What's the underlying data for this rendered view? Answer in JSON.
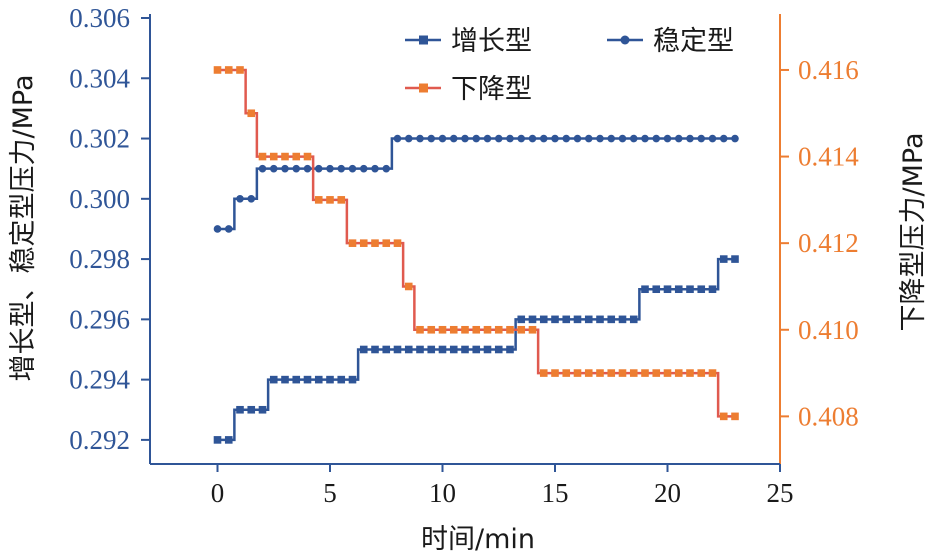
{
  "chart_data": {
    "type": "line",
    "xlabel": "时间/min",
    "ylabel_left": "增长型、稳定型压力/MPa",
    "ylabel_right": "下降型压力/MPa",
    "xlim": [
      -3,
      25
    ],
    "xticks": [
      0,
      5,
      10,
      15,
      20,
      25
    ],
    "ylim_left": [
      0.2912,
      0.306
    ],
    "yticks_left": [
      "0.292",
      "0.294",
      "0.296",
      "0.298",
      "0.300",
      "0.302",
      "0.304",
      "0.306"
    ],
    "ylim_right": [
      0.4069,
      0.4172
    ],
    "yticks_right": [
      "0.408",
      "0.410",
      "0.412",
      "0.414",
      "0.416"
    ],
    "legend": "top",
    "grid": false,
    "series": [
      {
        "name": "增长型",
        "axis": "left",
        "color": "#2f5597",
        "marker": "square",
        "x": [
          0,
          0.5,
          1,
          1.5,
          2,
          2.5,
          3,
          3.5,
          4,
          4.5,
          5,
          5.5,
          6,
          6.5,
          7,
          7.5,
          8,
          8.5,
          9,
          9.5,
          10,
          10.5,
          11,
          11.5,
          12,
          12.5,
          13,
          13.5,
          14,
          14.5,
          15,
          15.5,
          16,
          16.5,
          17,
          17.5,
          18,
          18.5,
          19,
          19.5,
          20,
          20.5,
          21,
          21.5,
          22,
          22.5,
          23
        ],
        "y": [
          0.292,
          0.292,
          0.293,
          0.293,
          0.293,
          0.294,
          0.294,
          0.294,
          0.294,
          0.294,
          0.294,
          0.294,
          0.294,
          0.295,
          0.295,
          0.295,
          0.295,
          0.295,
          0.295,
          0.295,
          0.295,
          0.295,
          0.295,
          0.295,
          0.295,
          0.295,
          0.295,
          0.296,
          0.296,
          0.296,
          0.296,
          0.296,
          0.296,
          0.296,
          0.296,
          0.296,
          0.296,
          0.296,
          0.297,
          0.297,
          0.297,
          0.297,
          0.297,
          0.297,
          0.297,
          0.298,
          0.298
        ]
      },
      {
        "name": "稳定型",
        "axis": "left",
        "color": "#2f5597",
        "marker": "circle",
        "x": [
          0,
          0.5,
          1,
          1.5,
          2,
          2.5,
          3,
          3.5,
          4,
          4.5,
          5,
          5.5,
          6,
          6.5,
          7,
          7.5,
          8,
          8.5,
          9,
          9.5,
          10,
          10.5,
          11,
          11.5,
          12,
          12.5,
          13,
          13.5,
          14,
          14.5,
          15,
          15.5,
          16,
          16.5,
          17,
          17.5,
          18,
          18.5,
          19,
          19.5,
          20,
          20.5,
          21,
          21.5,
          22,
          22.5,
          23
        ],
        "y": [
          0.299,
          0.299,
          0.3,
          0.3,
          0.301,
          0.301,
          0.301,
          0.301,
          0.301,
          0.301,
          0.301,
          0.301,
          0.301,
          0.301,
          0.301,
          0.301,
          0.302,
          0.302,
          0.302,
          0.302,
          0.302,
          0.302,
          0.302,
          0.302,
          0.302,
          0.302,
          0.302,
          0.302,
          0.302,
          0.302,
          0.302,
          0.302,
          0.302,
          0.302,
          0.302,
          0.302,
          0.302,
          0.302,
          0.302,
          0.302,
          0.302,
          0.302,
          0.302,
          0.302,
          0.302,
          0.302,
          0.302
        ]
      },
      {
        "name": "下降型",
        "axis": "right",
        "color": "#ed7d31",
        "line_color": "#e05a4f",
        "marker": "square",
        "x": [
          0,
          0.5,
          1,
          1.5,
          2,
          2.5,
          3,
          3.5,
          4,
          4.5,
          5,
          5.5,
          6,
          6.5,
          7,
          7.5,
          8,
          8.5,
          9,
          9.5,
          10,
          10.5,
          11,
          11.5,
          12,
          12.5,
          13,
          13.5,
          14,
          14.5,
          15,
          15.5,
          16,
          16.5,
          17,
          17.5,
          18,
          18.5,
          19,
          19.5,
          20,
          20.5,
          21,
          21.5,
          22,
          22.5,
          23
        ],
        "y": [
          0.416,
          0.416,
          0.416,
          0.415,
          0.414,
          0.414,
          0.414,
          0.414,
          0.414,
          0.413,
          0.413,
          0.413,
          0.412,
          0.412,
          0.412,
          0.412,
          0.412,
          0.411,
          0.41,
          0.41,
          0.41,
          0.41,
          0.41,
          0.41,
          0.41,
          0.41,
          0.41,
          0.41,
          0.41,
          0.409,
          0.409,
          0.409,
          0.409,
          0.409,
          0.409,
          0.409,
          0.409,
          0.409,
          0.409,
          0.409,
          0.409,
          0.409,
          0.409,
          0.409,
          0.409,
          0.408,
          0.408
        ]
      }
    ]
  }
}
